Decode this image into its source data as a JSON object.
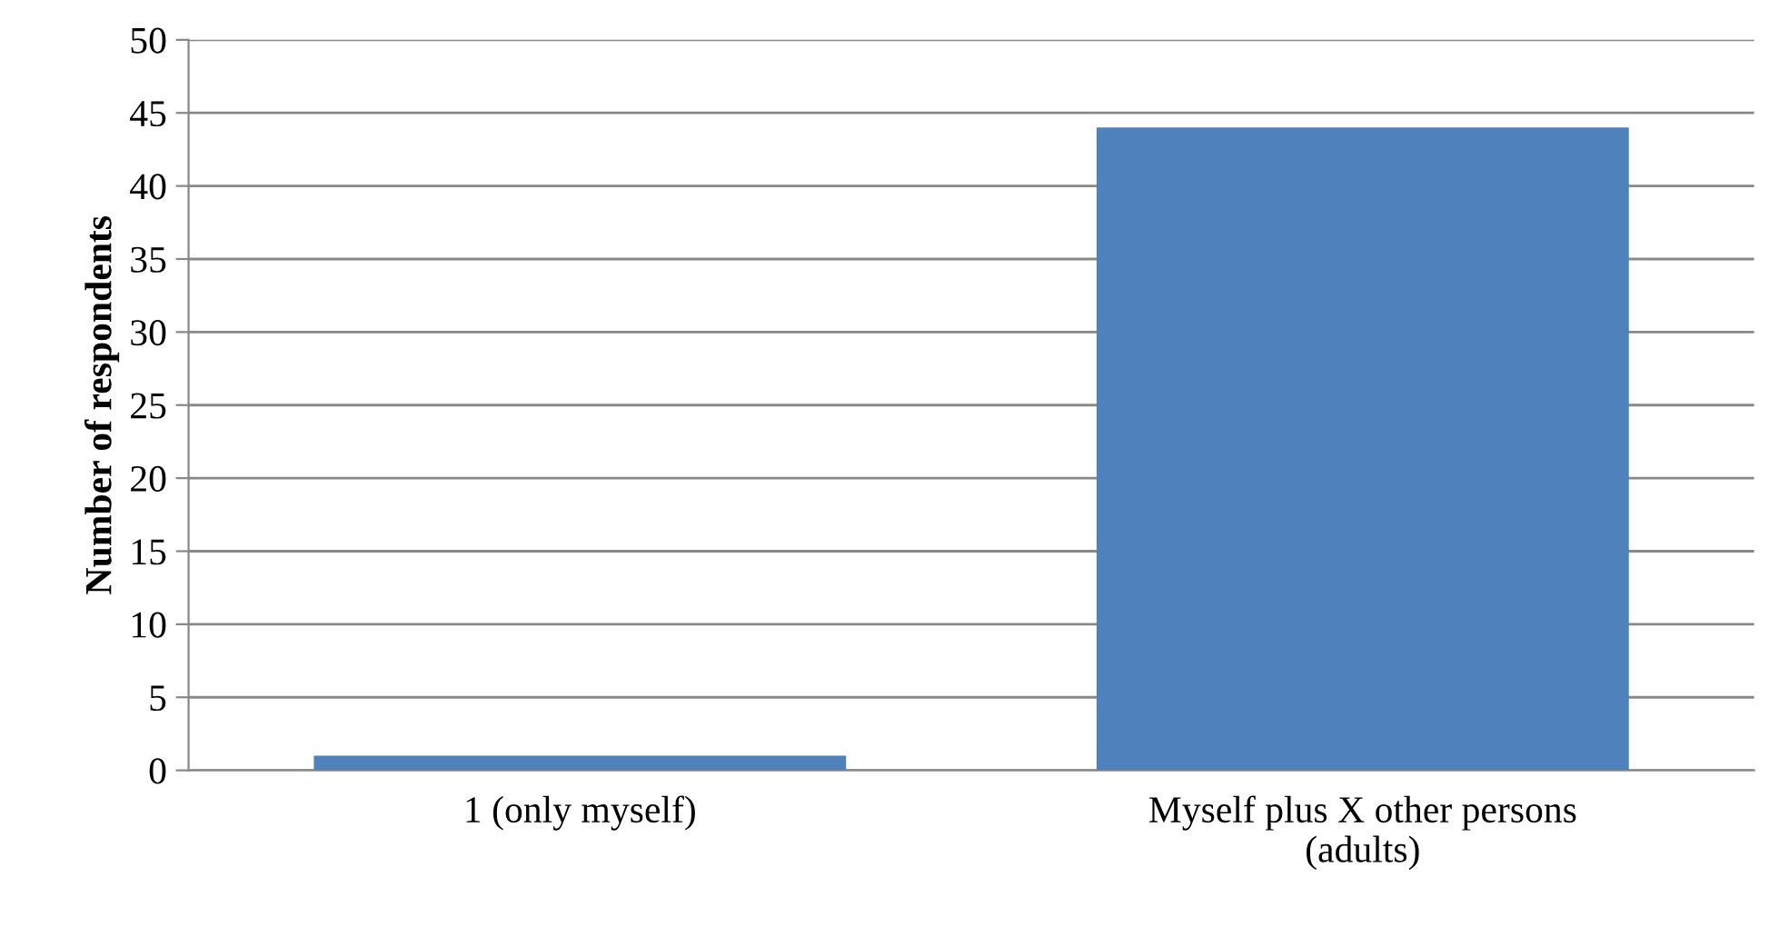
{
  "chart_data": {
    "type": "bar",
    "ylabel": "Number of respondents",
    "categories": [
      "1 (only myself)",
      "Myself plus X other persons\n(adults)"
    ],
    "values": [
      1,
      44
    ],
    "color": "#4f81bd",
    "ylim": [
      0,
      50
    ],
    "yticks": [
      0,
      5,
      10,
      15,
      20,
      25,
      30,
      35,
      40,
      45,
      50
    ],
    "grid": "y"
  }
}
